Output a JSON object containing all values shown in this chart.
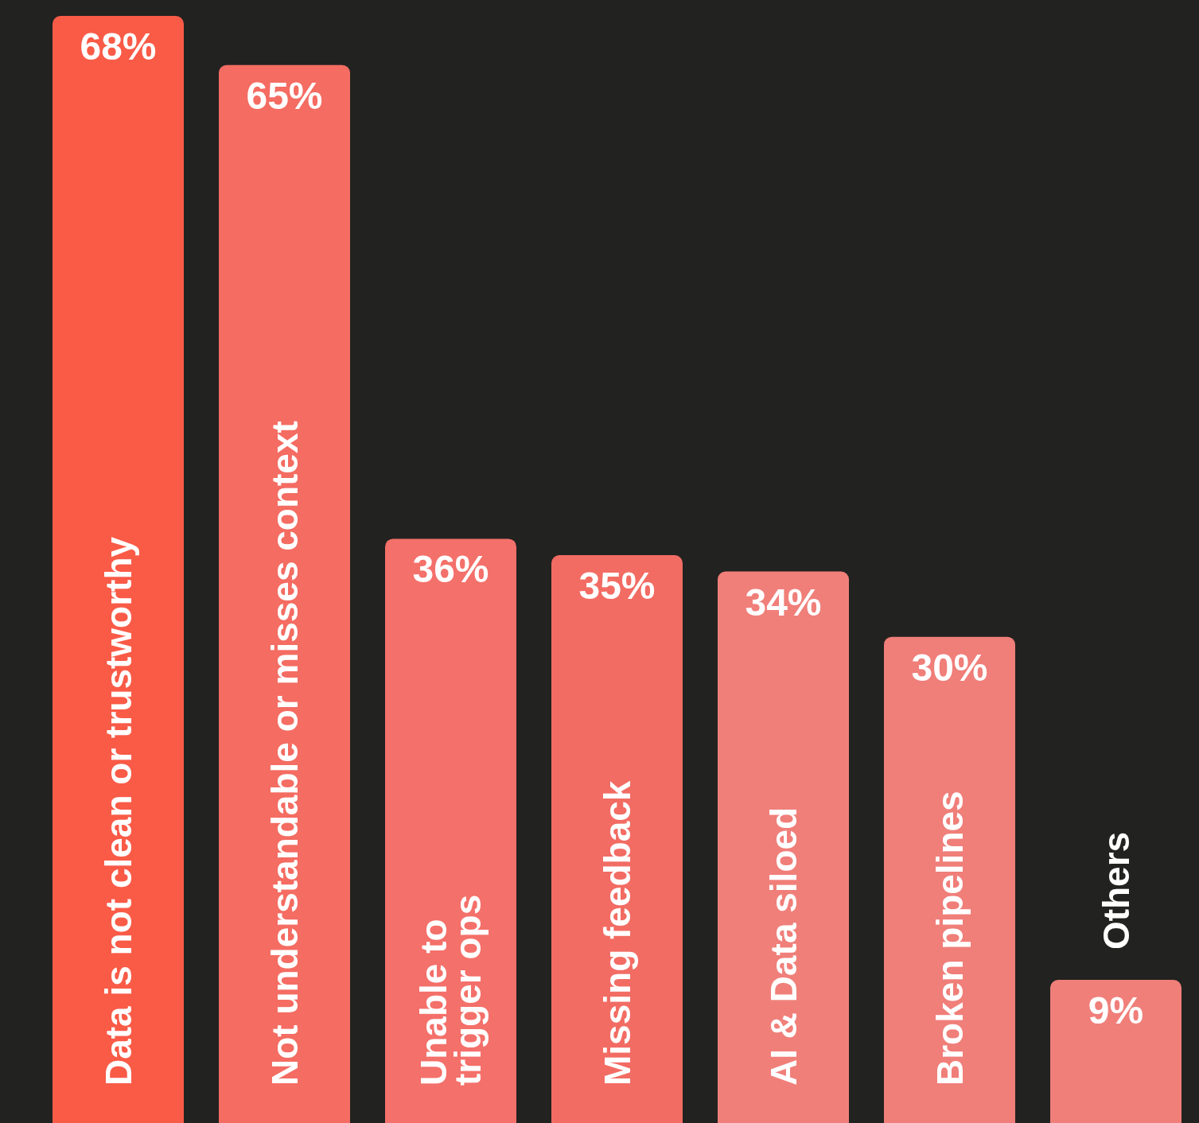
{
  "chart_data": {
    "type": "bar",
    "categories": [
      "Data is not clean or trustworthy",
      "Not understandable or misses context",
      "Unable to\ntrigger ops",
      "Missing feedback",
      "AI & Data siloed",
      "Broken pipelines",
      "Others"
    ],
    "values": [
      68,
      65,
      36,
      35,
      34,
      30,
      9
    ],
    "value_labels": [
      "68%",
      "65%",
      "36%",
      "35%",
      "34%",
      "30%",
      "9%"
    ],
    "colors": [
      "#f95b47",
      "#f46c62",
      "#f4706a",
      "#f26c63",
      "#f07f7a",
      "#f07e79",
      "#f07f7a"
    ]
  }
}
